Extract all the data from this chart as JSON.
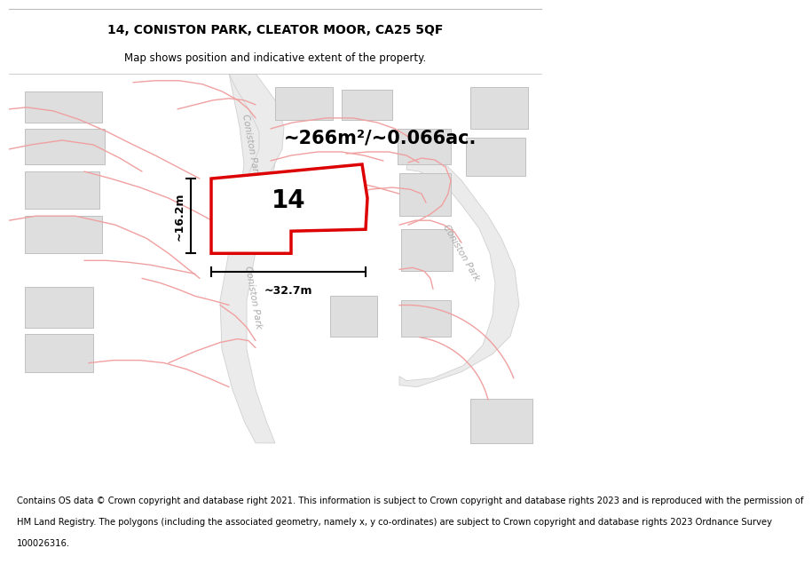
{
  "title": "14, CONISTON PARK, CLEATOR MOOR, CA25 5QF",
  "subtitle": "Map shows position and indicative extent of the property.",
  "footer_lines": [
    "Contains OS data © Crown copyright and database right 2021. This information is subject to Crown copyright and database rights 2023 and is reproduced with the permission of",
    "HM Land Registry. The polygons (including the associated geometry, namely x, y co-ordinates) are subject to Crown copyright and database rights 2023 Ordnance Survey",
    "100026316."
  ],
  "area_text": "~266m²/~0.066ac.",
  "width_text": "~32.7m",
  "height_text": "~16.2m",
  "plot_label": "14",
  "bg_color": "#ffffff",
  "map_bg": "#ffffff",
  "building_fill": "#dedede",
  "building_edge": "#c0c0c0",
  "road_fill": "#ebebeb",
  "road_edge": "#d0d0d0",
  "plot_fill": "#ffffff",
  "plot_edge": "#dd0000",
  "cad_color": "#f0a0a0",
  "cad_lw": 1.0,
  "dim_color": "#000000",
  "street_color": "#aaaaaa",
  "title_fontsize": 10,
  "subtitle_fontsize": 8.5,
  "footer_fontsize": 7.2,
  "area_fontsize": 15,
  "label_fontsize": 20,
  "dim_fontsize": 9,
  "street_fontsize": 7.5
}
